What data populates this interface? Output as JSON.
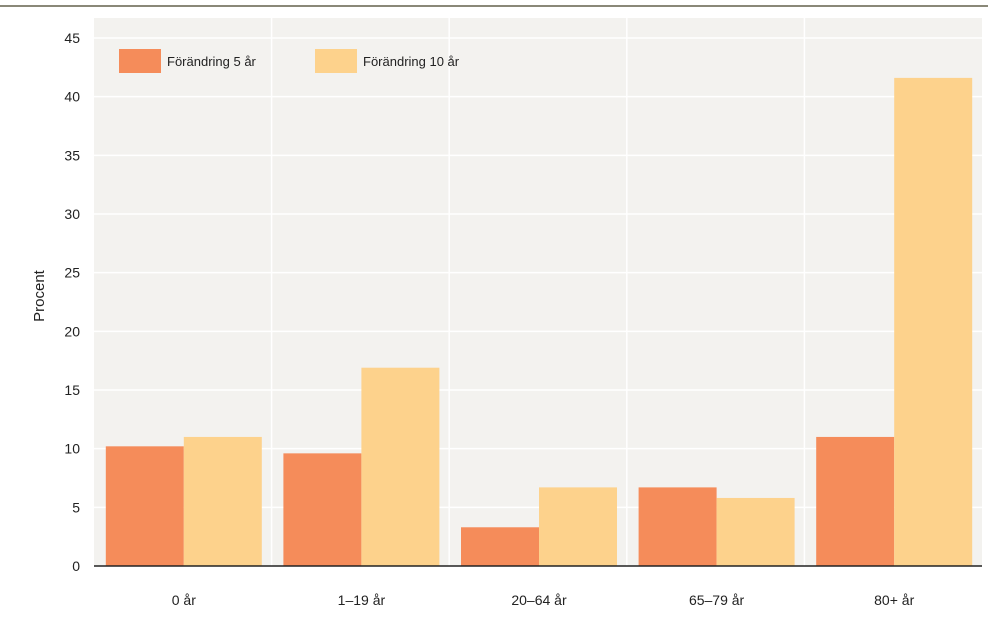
{
  "chart_data": {
    "type": "bar",
    "title": "",
    "xlabel": "",
    "ylabel": "Procent",
    "ylim": [
      0,
      45
    ],
    "yticks": [
      0,
      5,
      10,
      15,
      20,
      25,
      30,
      35,
      40,
      45
    ],
    "categories": [
      "0 år",
      "1–19 år",
      "20–64 år",
      "65–79 år",
      "80+ år"
    ],
    "series": [
      {
        "name": "Förändring 5 år",
        "color": "#f58c5a",
        "values": [
          10.2,
          9.6,
          3.3,
          6.7,
          11.0
        ]
      },
      {
        "name": "Förändring 10 år",
        "color": "#fdd28c",
        "values": [
          11.0,
          16.9,
          6.7,
          5.8,
          41.6
        ]
      }
    ],
    "grid": true,
    "legend_position": "top-left",
    "colors": {
      "plot_background": "#f3f2ef",
      "gridline": "#ffffff",
      "top_rule": "#8a8878",
      "axis_line": "#222222"
    }
  }
}
